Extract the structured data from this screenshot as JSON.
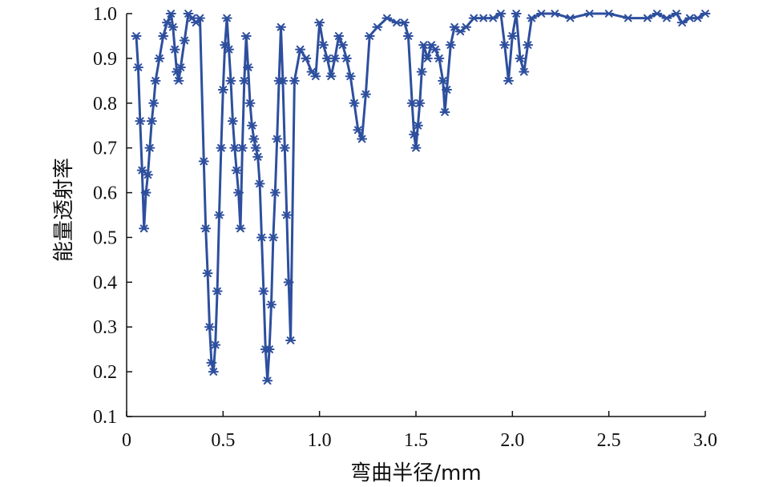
{
  "chart_data": {
    "type": "line",
    "title": "",
    "xlabel": "弯曲半径/mm",
    "ylabel": "能量透射率",
    "xlim": [
      0,
      3.0
    ],
    "ylim": [
      0.1,
      1.0
    ],
    "xticks": [
      "0",
      "0.5",
      "1.0",
      "1.5",
      "2.0",
      "2.5",
      "3.0"
    ],
    "yticks": [
      "0.1",
      "0.2",
      "0.3",
      "0.4",
      "0.5",
      "0.6",
      "0.7",
      "0.8",
      "0.9",
      "1.0"
    ],
    "grid": false,
    "marker": "asterisk",
    "color": "#2e4f9e",
    "series": [
      {
        "x": [
          0.05,
          0.06,
          0.07,
          0.08,
          0.09,
          0.1,
          0.11,
          0.12,
          0.13,
          0.14,
          0.15,
          0.17,
          0.19,
          0.21,
          0.23,
          0.24,
          0.25,
          0.26,
          0.27,
          0.28,
          0.3,
          0.32,
          0.34,
          0.36,
          0.38,
          0.4,
          0.41,
          0.42,
          0.43,
          0.44,
          0.45,
          0.46,
          0.47,
          0.48,
          0.49,
          0.5,
          0.51,
          0.52,
          0.53,
          0.54,
          0.55,
          0.56,
          0.57,
          0.58,
          0.59,
          0.6,
          0.61,
          0.62,
          0.63,
          0.64,
          0.65,
          0.66,
          0.67,
          0.68,
          0.69,
          0.7,
          0.71,
          0.72,
          0.73,
          0.74,
          0.75,
          0.76,
          0.77,
          0.78,
          0.79,
          0.8,
          0.81,
          0.82,
          0.83,
          0.84,
          0.85,
          0.87,
          0.9,
          0.93,
          0.96,
          0.98,
          1.0,
          1.02,
          1.04,
          1.06,
          1.08,
          1.1,
          1.12,
          1.14,
          1.16,
          1.18,
          1.2,
          1.22,
          1.24,
          1.26,
          1.3,
          1.35,
          1.4,
          1.44,
          1.46,
          1.48,
          1.49,
          1.5,
          1.51,
          1.52,
          1.53,
          1.54,
          1.56,
          1.58,
          1.6,
          1.62,
          1.64,
          1.65,
          1.66,
          1.68,
          1.7,
          1.73,
          1.76,
          1.8,
          1.85,
          1.9,
          1.94,
          1.96,
          1.98,
          2.0,
          2.02,
          2.04,
          2.06,
          2.08,
          2.1,
          2.15,
          2.22,
          2.3,
          2.4,
          2.5,
          2.6,
          2.7,
          2.75,
          2.8,
          2.85,
          2.88,
          2.92,
          2.96,
          3.0
        ],
        "y": [
          0.95,
          0.88,
          0.76,
          0.65,
          0.52,
          0.6,
          0.64,
          0.7,
          0.76,
          0.8,
          0.85,
          0.9,
          0.95,
          0.98,
          1.0,
          0.97,
          0.92,
          0.87,
          0.85,
          0.88,
          0.94,
          1.0,
          0.99,
          0.98,
          0.99,
          0.67,
          0.52,
          0.42,
          0.3,
          0.22,
          0.2,
          0.26,
          0.38,
          0.55,
          0.7,
          0.83,
          0.93,
          0.99,
          0.92,
          0.85,
          0.76,
          0.7,
          0.65,
          0.6,
          0.52,
          0.7,
          0.85,
          0.95,
          0.88,
          0.8,
          0.75,
          0.72,
          0.7,
          0.68,
          0.62,
          0.5,
          0.38,
          0.25,
          0.18,
          0.25,
          0.35,
          0.5,
          0.6,
          0.72,
          0.85,
          0.97,
          0.85,
          0.7,
          0.55,
          0.4,
          0.27,
          0.85,
          0.92,
          0.9,
          0.87,
          0.86,
          0.98,
          0.93,
          0.9,
          0.86,
          0.9,
          0.95,
          0.93,
          0.9,
          0.86,
          0.8,
          0.74,
          0.72,
          0.82,
          0.95,
          0.97,
          0.99,
          0.98,
          0.98,
          0.95,
          0.8,
          0.73,
          0.7,
          0.75,
          0.8,
          0.87,
          0.93,
          0.9,
          0.93,
          0.92,
          0.9,
          0.85,
          0.78,
          0.83,
          0.93,
          0.97,
          0.96,
          0.97,
          0.99,
          0.99,
          0.99,
          1.0,
          0.93,
          0.85,
          0.95,
          1.0,
          0.9,
          0.87,
          0.93,
          0.99,
          1.0,
          1.0,
          0.99,
          1.0,
          1.0,
          0.99,
          0.99,
          1.0,
          0.99,
          1.0,
          0.98,
          0.99,
          0.99,
          1.0
        ]
      }
    ]
  }
}
